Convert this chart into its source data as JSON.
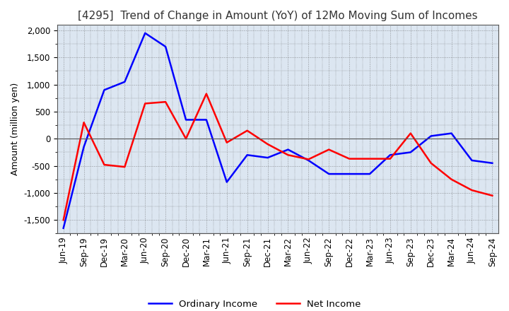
{
  "title": "[4295]  Trend of Change in Amount (YoY) of 12Mo Moving Sum of Incomes",
  "ylabel": "Amount (million yen)",
  "x_labels": [
    "Jun-19",
    "Sep-19",
    "Dec-19",
    "Mar-20",
    "Jun-20",
    "Sep-20",
    "Dec-20",
    "Mar-21",
    "Jun-21",
    "Sep-21",
    "Dec-21",
    "Mar-22",
    "Jun-22",
    "Sep-22",
    "Dec-22",
    "Mar-23",
    "Jun-23",
    "Sep-23",
    "Dec-23",
    "Mar-24",
    "Jun-24",
    "Sep-24"
  ],
  "ordinary_income": [
    -1650,
    -150,
    900,
    1050,
    1950,
    1700,
    350,
    350,
    -800,
    -300,
    -350,
    -200,
    -400,
    -650,
    -650,
    -650,
    -300,
    -250,
    50,
    100,
    -400,
    -450
  ],
  "net_income": [
    -1500,
    300,
    -480,
    -520,
    650,
    680,
    0,
    830,
    -70,
    150,
    -100,
    -300,
    -380,
    -200,
    -370,
    -370,
    -370,
    100,
    -450,
    -750,
    -950,
    -1050
  ],
  "ordinary_color": "#0000FF",
  "net_color": "#FF0000",
  "ylim": [
    -1750,
    2100
  ],
  "yticks": [
    -1500,
    -1000,
    -500,
    0,
    500,
    1000,
    1500,
    2000
  ],
  "background_color": "#dce6f1",
  "plot_bg_color": "#dce6f1",
  "grid_color": "#555555",
  "title_fontsize": 11,
  "axis_fontsize": 9,
  "tick_fontsize": 8.5
}
